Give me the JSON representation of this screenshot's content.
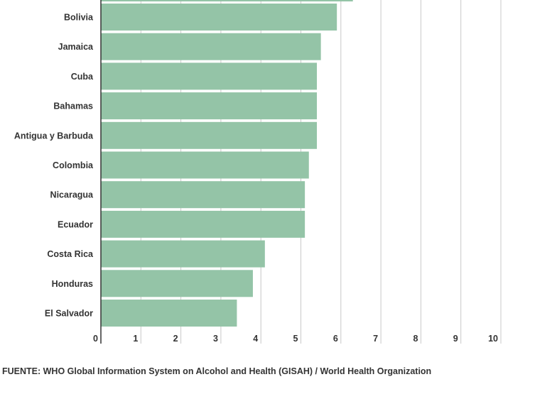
{
  "chart_data": {
    "type": "bar",
    "orientation": "horizontal",
    "categories": [
      "Bolivia",
      "Jamaica",
      "Cuba",
      "Bahamas",
      "Antigua y Barbuda",
      "Colombia",
      "Nicaragua",
      "Ecuador",
      "Costa Rica",
      "Honduras",
      "El Salvador"
    ],
    "values": [
      5.9,
      5.5,
      5.4,
      5.4,
      5.4,
      5.2,
      5.1,
      5.1,
      4.1,
      3.8,
      3.4
    ],
    "partial_bar_above_value": 6.3,
    "xticks": [
      0,
      1,
      2,
      3,
      4,
      5,
      6,
      7,
      8,
      9,
      10
    ],
    "xlim": [
      0,
      10
    ],
    "grid": "vertical",
    "legend": "none",
    "title": "",
    "xlabel": "",
    "ylabel": "",
    "source": "FUENTE: WHO Global Information System on Alcohol and Health (GISAH) / World Health Organization",
    "colors": {
      "bar": "#94c4a7",
      "text": "#333333",
      "grid": "#c8c8c8",
      "axis": "#333333"
    }
  }
}
